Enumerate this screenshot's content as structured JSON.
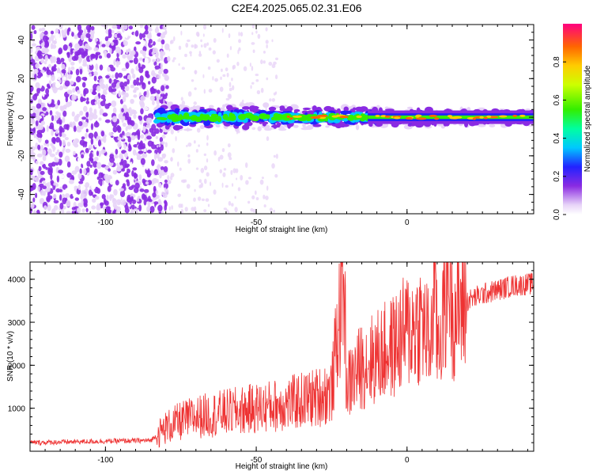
{
  "title": "C2E4.2025.065.02.31.E06",
  "chart_data": [
    {
      "type": "heatmap",
      "xlabel": "Height of straight line (km)",
      "ylabel": "Frequency (Hz)",
      "xlim": [
        -125,
        42
      ],
      "ylim": [
        -50,
        48
      ],
      "x_ticks": [
        -100,
        -50,
        0
      ],
      "y_ticks": [
        -40,
        -20,
        0,
        20,
        40
      ],
      "colorbar": {
        "label": "Normalized spectral amplitude",
        "range": [
          0.0,
          1.0
        ],
        "ticks": [
          0.0,
          0.2,
          0.4,
          0.6,
          0.8
        ]
      },
      "features": [
        {
          "x_range": [
            -125,
            -83
          ],
          "description_value": "broadband noise",
          "level": 0.2
        },
        {
          "x_range": [
            -83,
            42
          ],
          "center_frequency_hz": 0,
          "half_width_hz": 3,
          "level": 0.6
        }
      ],
      "grid": false
    },
    {
      "type": "line",
      "xlabel": "Height of straight line (km)",
      "ylabel": "SNR (10 * v/v)",
      "xlim": [
        -125,
        42
      ],
      "ylim": [
        0,
        4400
      ],
      "x_ticks": [
        -100,
        -50,
        0
      ],
      "y_ticks": [
        1000,
        2000,
        3000,
        4000
      ],
      "color": "#ee3333",
      "series": [
        {
          "x": [
            -125,
            -110,
            -95,
            -85,
            -80,
            -75,
            -70,
            -60,
            -50,
            -40,
            -30,
            -25,
            -21,
            -20,
            -15,
            -10,
            -5,
            0,
            5,
            8,
            9,
            10,
            12,
            14,
            15,
            20,
            25,
            30,
            35,
            42
          ],
          "y": [
            200,
            220,
            240,
            250,
            550,
            700,
            800,
            900,
            1000,
            1100,
            1250,
            1400,
            4100,
            1500,
            2000,
            2200,
            2400,
            2800,
            3000,
            2400,
            4300,
            2500,
            3100,
            4300,
            3200,
            3500,
            3650,
            3750,
            3850,
            3900
          ]
        }
      ],
      "grid": false
    }
  ]
}
